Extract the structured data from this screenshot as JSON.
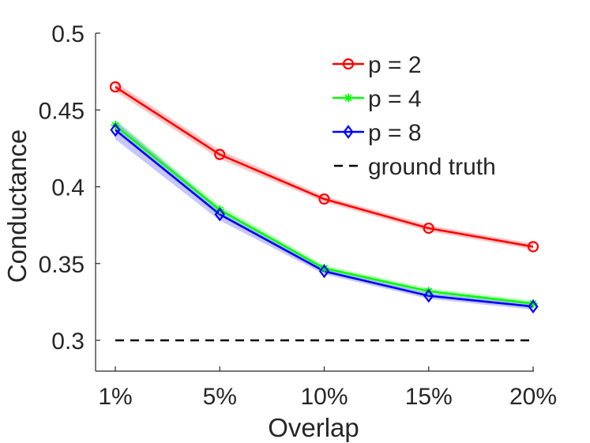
{
  "chart_data": {
    "type": "line",
    "title": "",
    "xlabel": "Overlap",
    "ylabel": "Conductance",
    "categories": [
      "1%",
      "5%",
      "10%",
      "15%",
      "20%"
    ],
    "ylim": [
      0.28,
      0.5
    ],
    "yticks": [
      0.3,
      0.35,
      0.4,
      0.45,
      0.5
    ],
    "ytick_labels": [
      "0.3",
      "0.35",
      "0.4",
      "0.45",
      "0.5"
    ],
    "grid": false,
    "legend_position": "top-right",
    "series": [
      {
        "name": "p = 2",
        "color": "#ff0000",
        "marker": "circle",
        "values": [
          0.465,
          0.421,
          0.392,
          0.373,
          0.361
        ],
        "band": [
          0.003,
          0.003,
          0.002,
          0.002,
          0.002
        ]
      },
      {
        "name": "p = 4",
        "color": "#00ff00",
        "marker": "asterisk",
        "values": [
          0.44,
          0.385,
          0.347,
          0.332,
          0.324
        ],
        "band": [
          0.004,
          0.003,
          0.002,
          0.002,
          0.002
        ]
      },
      {
        "name": "p = 8",
        "color": "#0000ff",
        "marker": "diamond",
        "values": [
          0.437,
          0.382,
          0.345,
          0.329,
          0.322
        ],
        "band": [
          0.006,
          0.004,
          0.002,
          0.002,
          0.002
        ]
      },
      {
        "name": "ground truth",
        "color": "#000000",
        "marker": "none",
        "linestyle": "dashed",
        "values": [
          0.3,
          0.3,
          0.3,
          0.3,
          0.3
        ]
      }
    ]
  }
}
